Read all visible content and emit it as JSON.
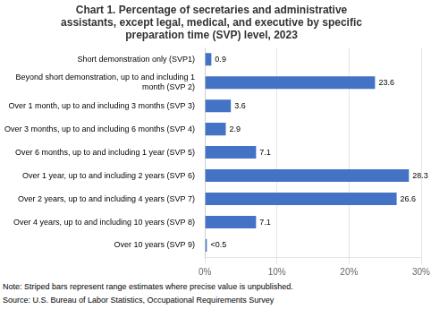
{
  "chart_data": {
    "type": "bar",
    "orientation": "horizontal",
    "title": "Chart 1. Percentage of secretaries and administrative\nassistants, except legal, medical, and executive by specific\npreparation time (SVP) level, 2023",
    "categories": [
      "Short demonstration only (SVP1)",
      "Beyond short demonstration, up to and including 1\nmonth (SVP 2)",
      "Over 1 month, up to and including 3 months (SVP 3)",
      "Over 3 months, up to and including 6 months (SVP 4)",
      "Over 6 months, up to and including 1 year (SVP 5)",
      "Over 1 year, up to and including 2 years (SVP 6)",
      "Over 2 years, up to and including 4 years (SVP 7)",
      "Over 4 years, up to and including 10 years (SVP 8)",
      "Over 10 years (SVP 9)"
    ],
    "values": [
      0.9,
      23.6,
      3.6,
      2.9,
      7.1,
      28.3,
      26.6,
      7.1,
      0.3
    ],
    "value_labels": [
      "0.9",
      "23.6",
      "3.6",
      "2.9",
      "7.1",
      "28.3",
      "26.6",
      "7.1",
      "<0.5"
    ],
    "data_labels": true,
    "color": "#4472C4",
    "xlim": [
      0,
      30
    ],
    "xticks": [
      {
        "value": 0,
        "label": "0%"
      },
      {
        "value": 10,
        "label": "10%"
      },
      {
        "value": 20,
        "label": "20%"
      },
      {
        "value": 30,
        "label": "30%"
      }
    ],
    "grid": true,
    "annotations": [
      "Note: Striped bars represent range estimates where precise value is unpublished.",
      "Source: U.S. Bureau of Labor Statistics, Occupational Requirements Survey"
    ]
  }
}
